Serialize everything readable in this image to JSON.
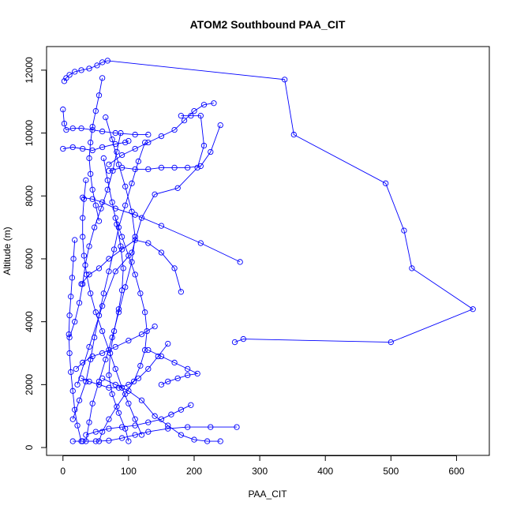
{
  "chart_data": {
    "type": "line",
    "title": "ATOM2 Southbound PAA_CIT",
    "xlabel": "PAA_CIT",
    "ylabel": "Altitude (m)",
    "xlim": [
      -25,
      650
    ],
    "ylim": [
      -250,
      12750
    ],
    "xticks": [
      0,
      100,
      200,
      300,
      400,
      500,
      600
    ],
    "yticks": [
      0,
      2000,
      4000,
      6000,
      8000,
      10000,
      12000
    ],
    "grid": false,
    "legend": "none",
    "series_color": "#0000ff",
    "marker": "open-circle",
    "series": [
      {
        "values": [
          [
            2,
            11650
          ],
          [
            5,
            11750
          ],
          [
            10,
            11850
          ],
          [
            18,
            11950
          ],
          [
            28,
            12000
          ],
          [
            40,
            12050
          ],
          [
            52,
            12150
          ],
          [
            60,
            12250
          ],
          [
            68,
            12300
          ],
          [
            338,
            11700
          ],
          [
            352,
            9950
          ],
          [
            492,
            8400
          ],
          [
            520,
            6900
          ],
          [
            532,
            5700
          ],
          [
            625,
            4400
          ],
          [
            500,
            3350
          ],
          [
            275,
            3450
          ],
          [
            262,
            3350
          ]
        ]
      },
      {
        "values": [
          [
            0,
            10750
          ],
          [
            2,
            10300
          ],
          [
            5,
            10100
          ],
          [
            15,
            10150
          ],
          [
            28,
            10150
          ],
          [
            45,
            10100
          ],
          [
            60,
            10050
          ],
          [
            80,
            10000
          ],
          [
            110,
            9950
          ],
          [
            130,
            9950
          ]
        ]
      },
      {
        "values": [
          [
            0,
            9500
          ],
          [
            15,
            9550
          ],
          [
            30,
            9500
          ],
          [
            45,
            9450
          ],
          [
            60,
            9550
          ],
          [
            80,
            9650
          ],
          [
            95,
            9700
          ],
          [
            100,
            9750
          ]
        ]
      },
      {
        "values": [
          [
            22,
            2000
          ],
          [
            40,
            3200
          ],
          [
            60,
            4500
          ],
          [
            80,
            5600
          ],
          [
            105,
            6200
          ],
          [
            120,
            7300
          ],
          [
            140,
            8050
          ],
          [
            175,
            8250
          ],
          [
            205,
            8900
          ],
          [
            215,
            9600
          ],
          [
            210,
            10550
          ],
          [
            195,
            10550
          ],
          [
            180,
            10550
          ]
        ]
      },
      {
        "values": [
          [
            270,
            5900
          ],
          [
            210,
            6500
          ],
          [
            150,
            7050
          ],
          [
            110,
            7400
          ],
          [
            80,
            7600
          ],
          [
            60,
            7800
          ],
          [
            45,
            7900
          ],
          [
            30,
            7950
          ]
        ]
      },
      {
        "values": [
          [
            180,
            4950
          ],
          [
            170,
            5700
          ],
          [
            150,
            6200
          ],
          [
            130,
            6500
          ],
          [
            110,
            6600
          ],
          [
            90,
            6300
          ],
          [
            70,
            6000
          ],
          [
            55,
            5700
          ],
          [
            40,
            5500
          ],
          [
            28,
            5200
          ]
        ]
      },
      {
        "values": [
          [
            140,
            3850
          ],
          [
            120,
            3600
          ],
          [
            100,
            3400
          ],
          [
            80,
            3200
          ],
          [
            60,
            3000
          ],
          [
            45,
            2900
          ],
          [
            30,
            2700
          ],
          [
            20,
            2500
          ]
        ]
      },
      {
        "values": [
          [
            265,
            650
          ],
          [
            225,
            650
          ],
          [
            190,
            650
          ],
          [
            160,
            600
          ],
          [
            130,
            500
          ],
          [
            110,
            400
          ],
          [
            90,
            300
          ],
          [
            70,
            220
          ],
          [
            50,
            200
          ],
          [
            30,
            200
          ],
          [
            15,
            200
          ]
        ]
      },
      {
        "values": [
          [
            240,
            200
          ],
          [
            220,
            200
          ],
          [
            200,
            250
          ],
          [
            180,
            400
          ],
          [
            160,
            700
          ],
          [
            140,
            1000
          ],
          [
            120,
            1500
          ],
          [
            100,
            1800
          ],
          [
            80,
            2000
          ],
          [
            60,
            2200
          ]
        ]
      },
      {
        "values": [
          [
            230,
            10950
          ],
          [
            215,
            10900
          ],
          [
            200,
            10700
          ],
          [
            185,
            10400
          ],
          [
            170,
            10100
          ],
          [
            150,
            9900
          ],
          [
            130,
            9700
          ],
          [
            110,
            9500
          ],
          [
            90,
            9300
          ],
          [
            70,
            9000
          ]
        ]
      },
      {
        "values": [
          [
            240,
            10250
          ],
          [
            225,
            9400
          ],
          [
            210,
            8950
          ],
          [
            190,
            8900
          ],
          [
            170,
            8900
          ],
          [
            150,
            8900
          ],
          [
            130,
            8850
          ],
          [
            110,
            8850
          ],
          [
            90,
            8900
          ],
          [
            70,
            8800
          ]
        ]
      },
      {
        "values": [
          [
            100,
            200
          ],
          [
            95,
            600
          ],
          [
            85,
            1100
          ],
          [
            75,
            1700
          ],
          [
            70,
            2300
          ],
          [
            72,
            3000
          ],
          [
            78,
            3700
          ],
          [
            85,
            4400
          ],
          [
            90,
            5000
          ],
          [
            92,
            5700
          ],
          [
            88,
            6400
          ],
          [
            82,
            7100
          ],
          [
            75,
            7800
          ],
          [
            68,
            8500
          ],
          [
            62,
            9200
          ]
        ]
      },
      {
        "values": [
          [
            35,
            200
          ],
          [
            40,
            800
          ],
          [
            45,
            1400
          ],
          [
            55,
            2100
          ],
          [
            65,
            2800
          ],
          [
            75,
            3500
          ],
          [
            85,
            4300
          ],
          [
            95,
            5100
          ],
          [
            105,
            5900
          ],
          [
            110,
            6700
          ],
          [
            105,
            7500
          ],
          [
            95,
            8300
          ],
          [
            85,
            9000
          ],
          [
            75,
            9800
          ],
          [
            65,
            10500
          ]
        ]
      },
      {
        "values": [
          [
            15,
            900
          ],
          [
            25,
            1500
          ],
          [
            35,
            2100
          ],
          [
            42,
            2800
          ],
          [
            48,
            3500
          ],
          [
            55,
            4200
          ],
          [
            62,
            4900
          ],
          [
            70,
            5600
          ],
          [
            78,
            6300
          ],
          [
            85,
            7000
          ],
          [
            95,
            7700
          ],
          [
            105,
            8400
          ],
          [
            115,
            9100
          ],
          [
            125,
            9700
          ]
        ]
      },
      {
        "values": [
          [
            120,
            400
          ],
          [
            110,
            900
          ],
          [
            100,
            1400
          ],
          [
            90,
            1900
          ],
          [
            80,
            2500
          ],
          [
            70,
            3100
          ],
          [
            60,
            3700
          ],
          [
            50,
            4300
          ],
          [
            42,
            4900
          ],
          [
            36,
            5500
          ],
          [
            32,
            6100
          ],
          [
            30,
            6700
          ],
          [
            30,
            7300
          ],
          [
            32,
            7900
          ],
          [
            35,
            8500
          ]
        ]
      },
      {
        "values": [
          [
            55,
            200
          ],
          [
            60,
            500
          ],
          [
            70,
            900
          ],
          [
            82,
            1300
          ],
          [
            95,
            1700
          ],
          [
            108,
            2100
          ],
          [
            118,
            2600
          ],
          [
            125,
            3100
          ],
          [
            128,
            3700
          ],
          [
            125,
            4300
          ],
          [
            118,
            4900
          ],
          [
            110,
            5500
          ],
          [
            100,
            6100
          ],
          [
            90,
            6700
          ],
          [
            80,
            7300
          ]
        ]
      },
      {
        "values": [
          [
            10,
            3500
          ],
          [
            18,
            4000
          ],
          [
            25,
            4600
          ],
          [
            30,
            5200
          ],
          [
            34,
            5800
          ],
          [
            40,
            6400
          ],
          [
            48,
            7000
          ],
          [
            58,
            7600
          ],
          [
            68,
            8200
          ],
          [
            76,
            8800
          ],
          [
            82,
            9400
          ],
          [
            88,
            10000
          ]
        ]
      },
      {
        "values": [
          [
            160,
            3300
          ],
          [
            145,
            2900
          ],
          [
            130,
            2500
          ],
          [
            115,
            2200
          ],
          [
            100,
            2000
          ],
          [
            85,
            1900
          ],
          [
            70,
            1900
          ],
          [
            55,
            2000
          ],
          [
            40,
            2100
          ],
          [
            28,
            2200
          ]
        ]
      },
      {
        "values": [
          [
            195,
            1350
          ],
          [
            180,
            1200
          ],
          [
            165,
            1050
          ],
          [
            150,
            900
          ],
          [
            130,
            800
          ],
          [
            110,
            700
          ],
          [
            90,
            650
          ],
          [
            70,
            600
          ],
          [
            50,
            500
          ],
          [
            35,
            400
          ]
        ]
      },
      {
        "values": [
          [
            60,
            11750
          ],
          [
            55,
            11200
          ],
          [
            50,
            10700
          ],
          [
            45,
            10200
          ],
          [
            42,
            9700
          ],
          [
            40,
            9200
          ],
          [
            42,
            8700
          ],
          [
            45,
            8200
          ],
          [
            50,
            7700
          ],
          [
            55,
            7200
          ]
        ]
      },
      {
        "values": [
          [
            150,
            2000
          ],
          [
            160,
            2100
          ],
          [
            175,
            2200
          ],
          [
            190,
            2300
          ],
          [
            205,
            2350
          ],
          [
            190,
            2500
          ],
          [
            170,
            2700
          ],
          [
            150,
            2900
          ],
          [
            130,
            3100
          ]
        ]
      },
      {
        "values": [
          [
            28,
            200
          ],
          [
            22,
            700
          ],
          [
            18,
            1200
          ],
          [
            15,
            1800
          ],
          [
            12,
            2400
          ],
          [
            10,
            3000
          ],
          [
            9,
            3600
          ],
          [
            10,
            4200
          ],
          [
            12,
            4800
          ],
          [
            14,
            5400
          ],
          [
            16,
            6000
          ],
          [
            18,
            6600
          ]
        ]
      }
    ]
  }
}
